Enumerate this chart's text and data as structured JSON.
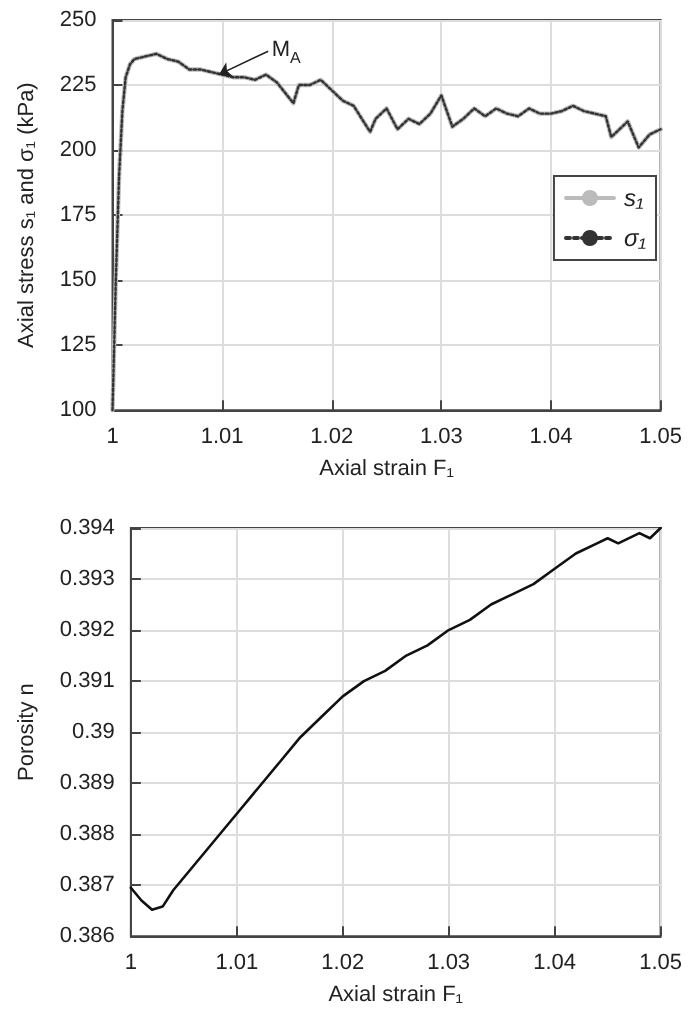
{
  "chart_data": [
    {
      "type": "line",
      "xlabel": "Axial strain F₁",
      "ylabel": "Axial stress s₁ and σ₁ (kPa)",
      "xlim": [
        1,
        1.05
      ],
      "xticks": [
        1,
        1.01,
        1.02,
        1.03,
        1.04,
        1.05
      ],
      "ylim": [
        100,
        250
      ],
      "yticks": [
        100,
        125,
        150,
        175,
        200,
        225,
        250
      ],
      "grid": true,
      "legend": "right",
      "marker": "none",
      "annotations": [
        {
          "text": "M$_{A}$",
          "x": 1.0097,
          "y": 229
        }
      ],
      "x": [
        1,
        1.0003,
        1.0006,
        1.0009,
        1.0012,
        1.0016,
        1.002,
        1.003,
        1.004,
        1.005,
        1.006,
        1.007,
        1.008,
        1.009,
        1.01,
        1.011,
        1.012,
        1.013,
        1.014,
        1.015,
        1.0165,
        1.017,
        1.018,
        1.019,
        1.02,
        1.021,
        1.022,
        1.0235,
        1.024,
        1.025,
        1.026,
        1.027,
        1.028,
        1.029,
        1.03,
        1.031,
        1.032,
        1.033,
        1.034,
        1.035,
        1.036,
        1.037,
        1.038,
        1.039,
        1.04,
        1.041,
        1.042,
        1.043,
        1.044,
        1.045,
        1.0455,
        1.046,
        1.047,
        1.048,
        1.049,
        1.05
      ],
      "series": [
        {
          "name": "s₁",
          "color": "#bbbbbb",
          "line_style": "solid",
          "values": [
            100,
            150,
            190,
            215,
            228,
            233,
            235,
            236,
            237,
            235,
            234,
            231,
            231,
            230,
            229,
            228,
            228,
            227,
            229,
            226,
            218,
            225,
            225,
            227,
            223,
            219,
            217,
            207,
            212,
            216,
            208,
            212,
            210,
            214,
            221,
            209,
            212,
            216,
            213,
            216,
            214,
            213,
            216,
            214,
            214,
            215,
            217,
            215,
            214,
            213,
            205,
            207,
            211,
            201,
            206,
            208
          ]
        },
        {
          "name": "σ₁",
          "color": "#333333",
          "line_style": "dotted",
          "values": [
            100,
            150,
            190,
            215,
            228,
            233,
            235,
            236,
            237,
            235,
            234,
            231,
            231,
            230,
            229,
            228,
            228,
            227,
            229,
            226,
            218,
            225,
            225,
            227,
            223,
            219,
            217,
            207,
            212,
            216,
            208,
            212,
            210,
            214,
            221,
            209,
            212,
            216,
            213,
            216,
            214,
            213,
            216,
            214,
            214,
            215,
            217,
            215,
            214,
            213,
            205,
            207,
            211,
            201,
            206,
            208
          ]
        }
      ]
    },
    {
      "type": "line",
      "xlabel": "Axial strain F₁",
      "ylabel": "Porosity n",
      "xlim": [
        1,
        1.05
      ],
      "xticks": [
        1,
        1.01,
        1.02,
        1.03,
        1.04,
        1.05
      ],
      "ylim": [
        0.386,
        0.394
      ],
      "yticks": [
        0.386,
        0.387,
        0.388,
        0.389,
        0.39,
        0.391,
        0.392,
        0.393,
        0.394
      ],
      "grid": true,
      "marker": "none",
      "x": [
        1,
        1.001,
        1.002,
        1.003,
        1.004,
        1.006,
        1.008,
        1.01,
        1.012,
        1.014,
        1.016,
        1.018,
        1.02,
        1.022,
        1.024,
        1.026,
        1.028,
        1.03,
        1.032,
        1.034,
        1.036,
        1.038,
        1.04,
        1.042,
        1.044,
        1.045,
        1.046,
        1.048,
        1.049,
        1.05
      ],
      "series": [
        {
          "color": "#111111",
          "line_style": "solid",
          "values": [
            0.38695,
            0.3867,
            0.38652,
            0.38658,
            0.3869,
            0.3874,
            0.3879,
            0.3884,
            0.3889,
            0.3894,
            0.3899,
            0.3903,
            0.3907,
            0.391,
            0.3912,
            0.3915,
            0.3917,
            0.392,
            0.3922,
            0.3925,
            0.3927,
            0.3929,
            0.3932,
            0.3935,
            0.3937,
            0.3938,
            0.3937,
            0.3939,
            0.3938,
            0.394
          ]
        }
      ]
    }
  ]
}
